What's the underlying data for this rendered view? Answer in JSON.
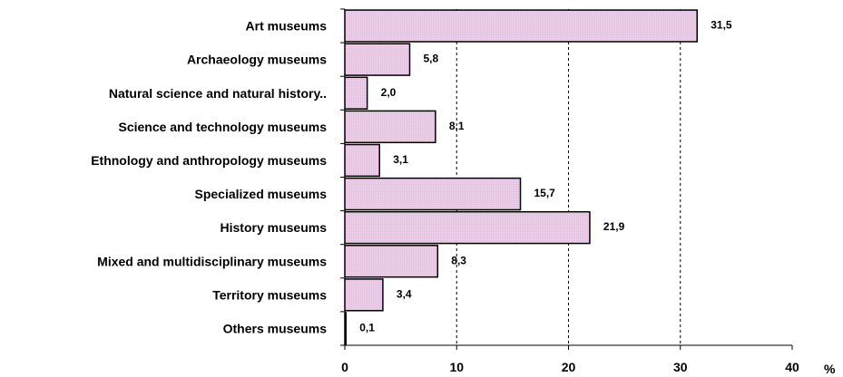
{
  "chart_data": {
    "type": "bar",
    "orientation": "horizontal",
    "categories": [
      "Art museums",
      "Archaeology museums",
      "Natural science and natural history..",
      "Science and technology museums",
      "Ethnology and anthropology museums",
      "Specialized museums",
      "History museums",
      "Mixed and multidisciplinary  museums",
      "Territory museums",
      "Others museums"
    ],
    "values": [
      31.5,
      5.8,
      2.0,
      8.1,
      3.1,
      15.7,
      21.9,
      8.3,
      3.4,
      0.1
    ],
    "value_labels": [
      "31,5",
      "5,8",
      "2,0",
      "8,1",
      "3,1",
      "15,7",
      "21,9",
      "8,3",
      "3,4",
      "0,1"
    ],
    "xlim": [
      0,
      40
    ],
    "xticks": [
      0,
      10,
      20,
      30,
      40
    ],
    "xunit": "%",
    "grid": "vertical dashed",
    "colors": {
      "bar_fill": "#ffb3f0",
      "bar_stroke": "#000000"
    }
  }
}
